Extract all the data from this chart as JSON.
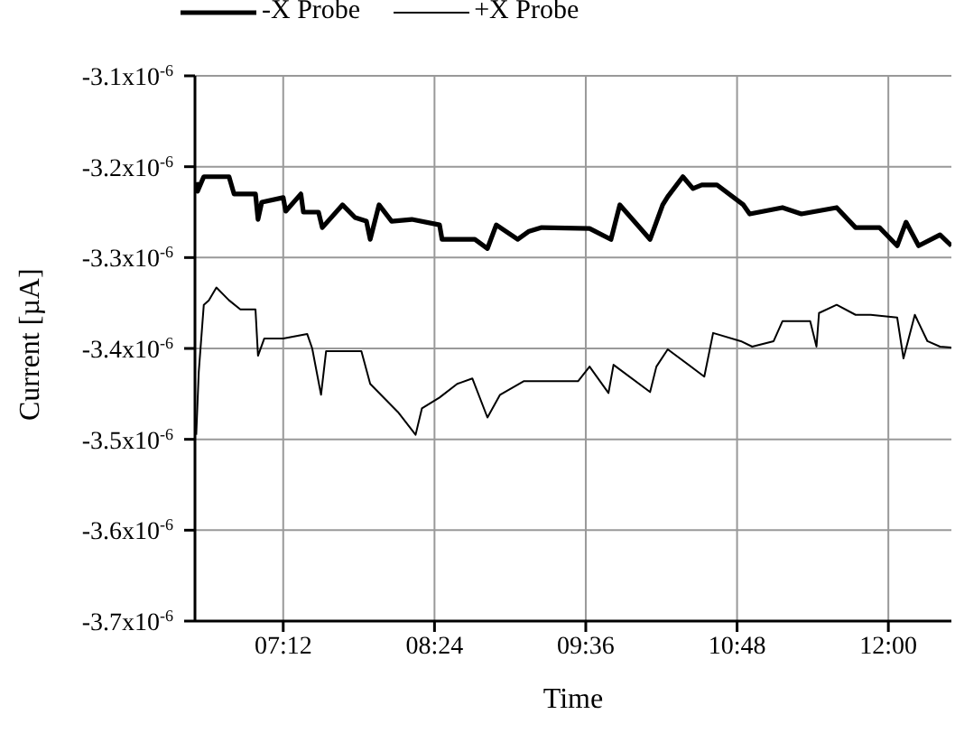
{
  "chart_data": {
    "type": "line",
    "xlabel": "Time",
    "ylabel": "Current [µA]",
    "xlim": [
      6.5,
      12.5
    ],
    "xticks": [
      {
        "value": 7.2,
        "label": "07:12"
      },
      {
        "value": 8.4,
        "label": "08:24"
      },
      {
        "value": 9.6,
        "label": "09:36"
      },
      {
        "value": 10.8,
        "label": "10:48"
      },
      {
        "value": 12.0,
        "label": "12:00"
      }
    ],
    "ylim": [
      -3.7e-06,
      -3.1e-06
    ],
    "yticks": [
      {
        "value": -3.7e-06,
        "label": "-3.7x10$^{-6}$"
      },
      {
        "value": -3.6e-06,
        "label": "-3.6x10$^{-6}$"
      },
      {
        "value": -3.5e-06,
        "label": "-3.5x10$^{-6}$"
      },
      {
        "value": -3.4e-06,
        "label": "-3.4x10$^{-6}$"
      },
      {
        "value": -3.3e-06,
        "label": "-3.3x10$^{-6}$"
      },
      {
        "value": -3.2e-06,
        "label": "-3.2x10$^{-6}$"
      },
      {
        "value": -3.1e-06,
        "label": "-3.1x10$^{-6}$"
      }
    ],
    "grid": true,
    "legend": "top left",
    "marker": "none",
    "line_style": "solid",
    "series": [
      {
        "name": "-X Probe",
        "color": "#000000",
        "x": [
          6.51,
          6.52,
          6.57,
          6.77,
          6.81,
          6.98,
          7.0,
          7.03,
          7.2,
          7.22,
          7.34,
          7.36,
          7.48,
          7.51,
          7.67,
          7.77,
          7.86,
          7.89,
          7.96,
          8.06,
          8.22,
          8.44,
          8.46,
          8.72,
          8.82,
          8.89,
          9.06,
          9.15,
          9.25,
          9.63,
          9.8,
          9.87,
          10.11,
          10.21,
          10.25,
          10.37,
          10.45,
          10.52,
          10.64,
          10.85,
          10.9,
          11.16,
          11.31,
          11.59,
          11.74,
          11.93,
          12.07,
          12.14,
          12.24,
          12.41,
          12.5
        ],
        "values": [
          -3.217e-06,
          -3.227e-06,
          -3.211e-06,
          -3.211e-06,
          -3.23e-06,
          -3.23e-06,
          -3.258e-06,
          -3.239e-06,
          -3.234e-06,
          -3.249e-06,
          -3.23e-06,
          -3.25e-06,
          -3.25e-06,
          -3.267e-06,
          -3.242e-06,
          -3.256e-06,
          -3.26e-06,
          -3.28e-06,
          -3.242e-06,
          -3.26e-06,
          -3.258e-06,
          -3.264e-06,
          -3.28e-06,
          -3.28e-06,
          -3.29e-06,
          -3.264e-06,
          -3.28e-06,
          -3.271e-06,
          -3.267e-06,
          -3.268e-06,
          -3.28e-06,
          -3.242e-06,
          -3.28e-06,
          -3.242e-06,
          -3.233e-06,
          -3.211e-06,
          -3.224e-06,
          -3.22e-06,
          -3.22e-06,
          -3.242e-06,
          -3.252e-06,
          -3.245e-06,
          -3.252e-06,
          -3.245e-06,
          -3.267e-06,
          -3.267e-06,
          -3.287e-06,
          -3.261e-06,
          -3.287e-06,
          -3.275e-06,
          -3.287e-06
        ]
      },
      {
        "name": "+X Probe",
        "color": "#000000",
        "x": [
          6.51,
          6.53,
          6.57,
          6.61,
          6.67,
          6.77,
          6.86,
          6.98,
          7.0,
          7.05,
          7.2,
          7.39,
          7.43,
          7.5,
          7.54,
          7.82,
          7.89,
          8.11,
          8.25,
          8.3,
          8.44,
          8.58,
          8.7,
          8.82,
          8.92,
          9.11,
          9.25,
          9.54,
          9.63,
          9.78,
          9.82,
          10.11,
          10.16,
          10.25,
          10.54,
          10.61,
          10.83,
          10.92,
          11.09,
          11.16,
          11.38,
          11.43,
          11.45,
          11.59,
          11.74,
          11.86,
          12.07,
          12.12,
          12.21,
          12.31,
          12.41,
          12.5
        ],
        "values": [
          -3.495e-06,
          -3.426e-06,
          -3.352e-06,
          -3.347e-06,
          -3.333e-06,
          -3.347e-06,
          -3.357e-06,
          -3.357e-06,
          -3.408e-06,
          -3.389e-06,
          -3.389e-06,
          -3.384e-06,
          -3.4e-06,
          -3.451e-06,
          -3.403e-06,
          -3.403e-06,
          -3.439e-06,
          -3.47e-06,
          -3.495e-06,
          -3.466e-06,
          -3.454e-06,
          -3.439e-06,
          -3.433e-06,
          -3.476e-06,
          -3.451e-06,
          -3.436e-06,
          -3.436e-06,
          -3.436e-06,
          -3.42e-06,
          -3.449e-06,
          -3.418e-06,
          -3.448e-06,
          -3.42e-06,
          -3.401e-06,
          -3.431e-06,
          -3.383e-06,
          -3.392e-06,
          -3.398e-06,
          -3.392e-06,
          -3.37e-06,
          -3.37e-06,
          -3.398e-06,
          -3.361e-06,
          -3.352e-06,
          -3.363e-06,
          -3.363e-06,
          -3.366e-06,
          -3.411e-06,
          -3.363e-06,
          -3.392e-06,
          -3.398e-06,
          -3.399e-06
        ]
      }
    ]
  }
}
